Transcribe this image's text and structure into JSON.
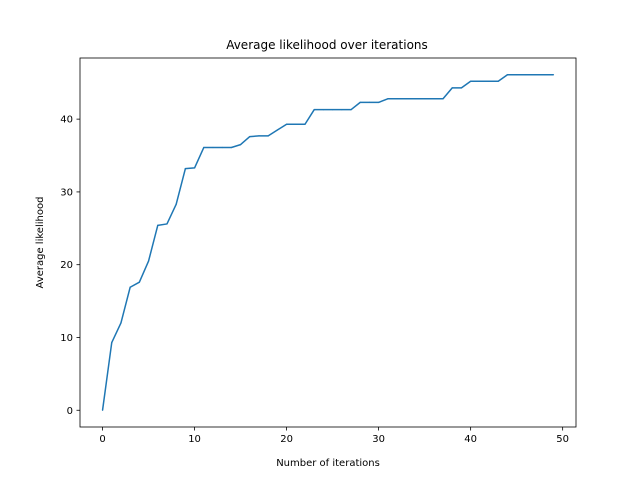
{
  "chart_data": {
    "type": "line",
    "title": "Average likelihood over iterations",
    "xlabel": "Number of iterations",
    "ylabel": "Average likelihood",
    "xlim": [
      -2.45,
      51.45
    ],
    "ylim": [
      -2.3,
      48.4
    ],
    "xticks": [
      0,
      10,
      20,
      30,
      40,
      50
    ],
    "yticks": [
      0,
      10,
      20,
      30,
      40
    ],
    "grid": false,
    "series": [
      {
        "color": "#1f77b4",
        "x": [
          0,
          1,
          2,
          3,
          4,
          5,
          6,
          7,
          8,
          9,
          10,
          11,
          12,
          13,
          14,
          15,
          16,
          17,
          18,
          19,
          20,
          21,
          22,
          23,
          24,
          25,
          26,
          27,
          28,
          29,
          30,
          31,
          32,
          33,
          34,
          35,
          36,
          37,
          38,
          39,
          40,
          41,
          42,
          43,
          44,
          45,
          46,
          47,
          48,
          49
        ],
        "y": [
          0,
          9.3,
          12,
          16.9,
          17.6,
          20.5,
          25.4,
          25.6,
          28.3,
          33.2,
          33.3,
          36.1,
          36.1,
          36.1,
          36.1,
          36.5,
          37.6,
          37.7,
          37.7,
          38.5,
          39.3,
          39.3,
          39.3,
          41.3,
          41.3,
          41.3,
          41.3,
          41.3,
          42.3,
          42.3,
          42.3,
          42.8,
          42.8,
          42.8,
          42.8,
          42.8,
          42.8,
          42.8,
          44.3,
          44.3,
          45.2,
          45.2,
          45.2,
          45.2,
          46.1,
          46.1,
          46.1,
          46.1,
          46.1,
          46.1
        ]
      }
    ]
  }
}
